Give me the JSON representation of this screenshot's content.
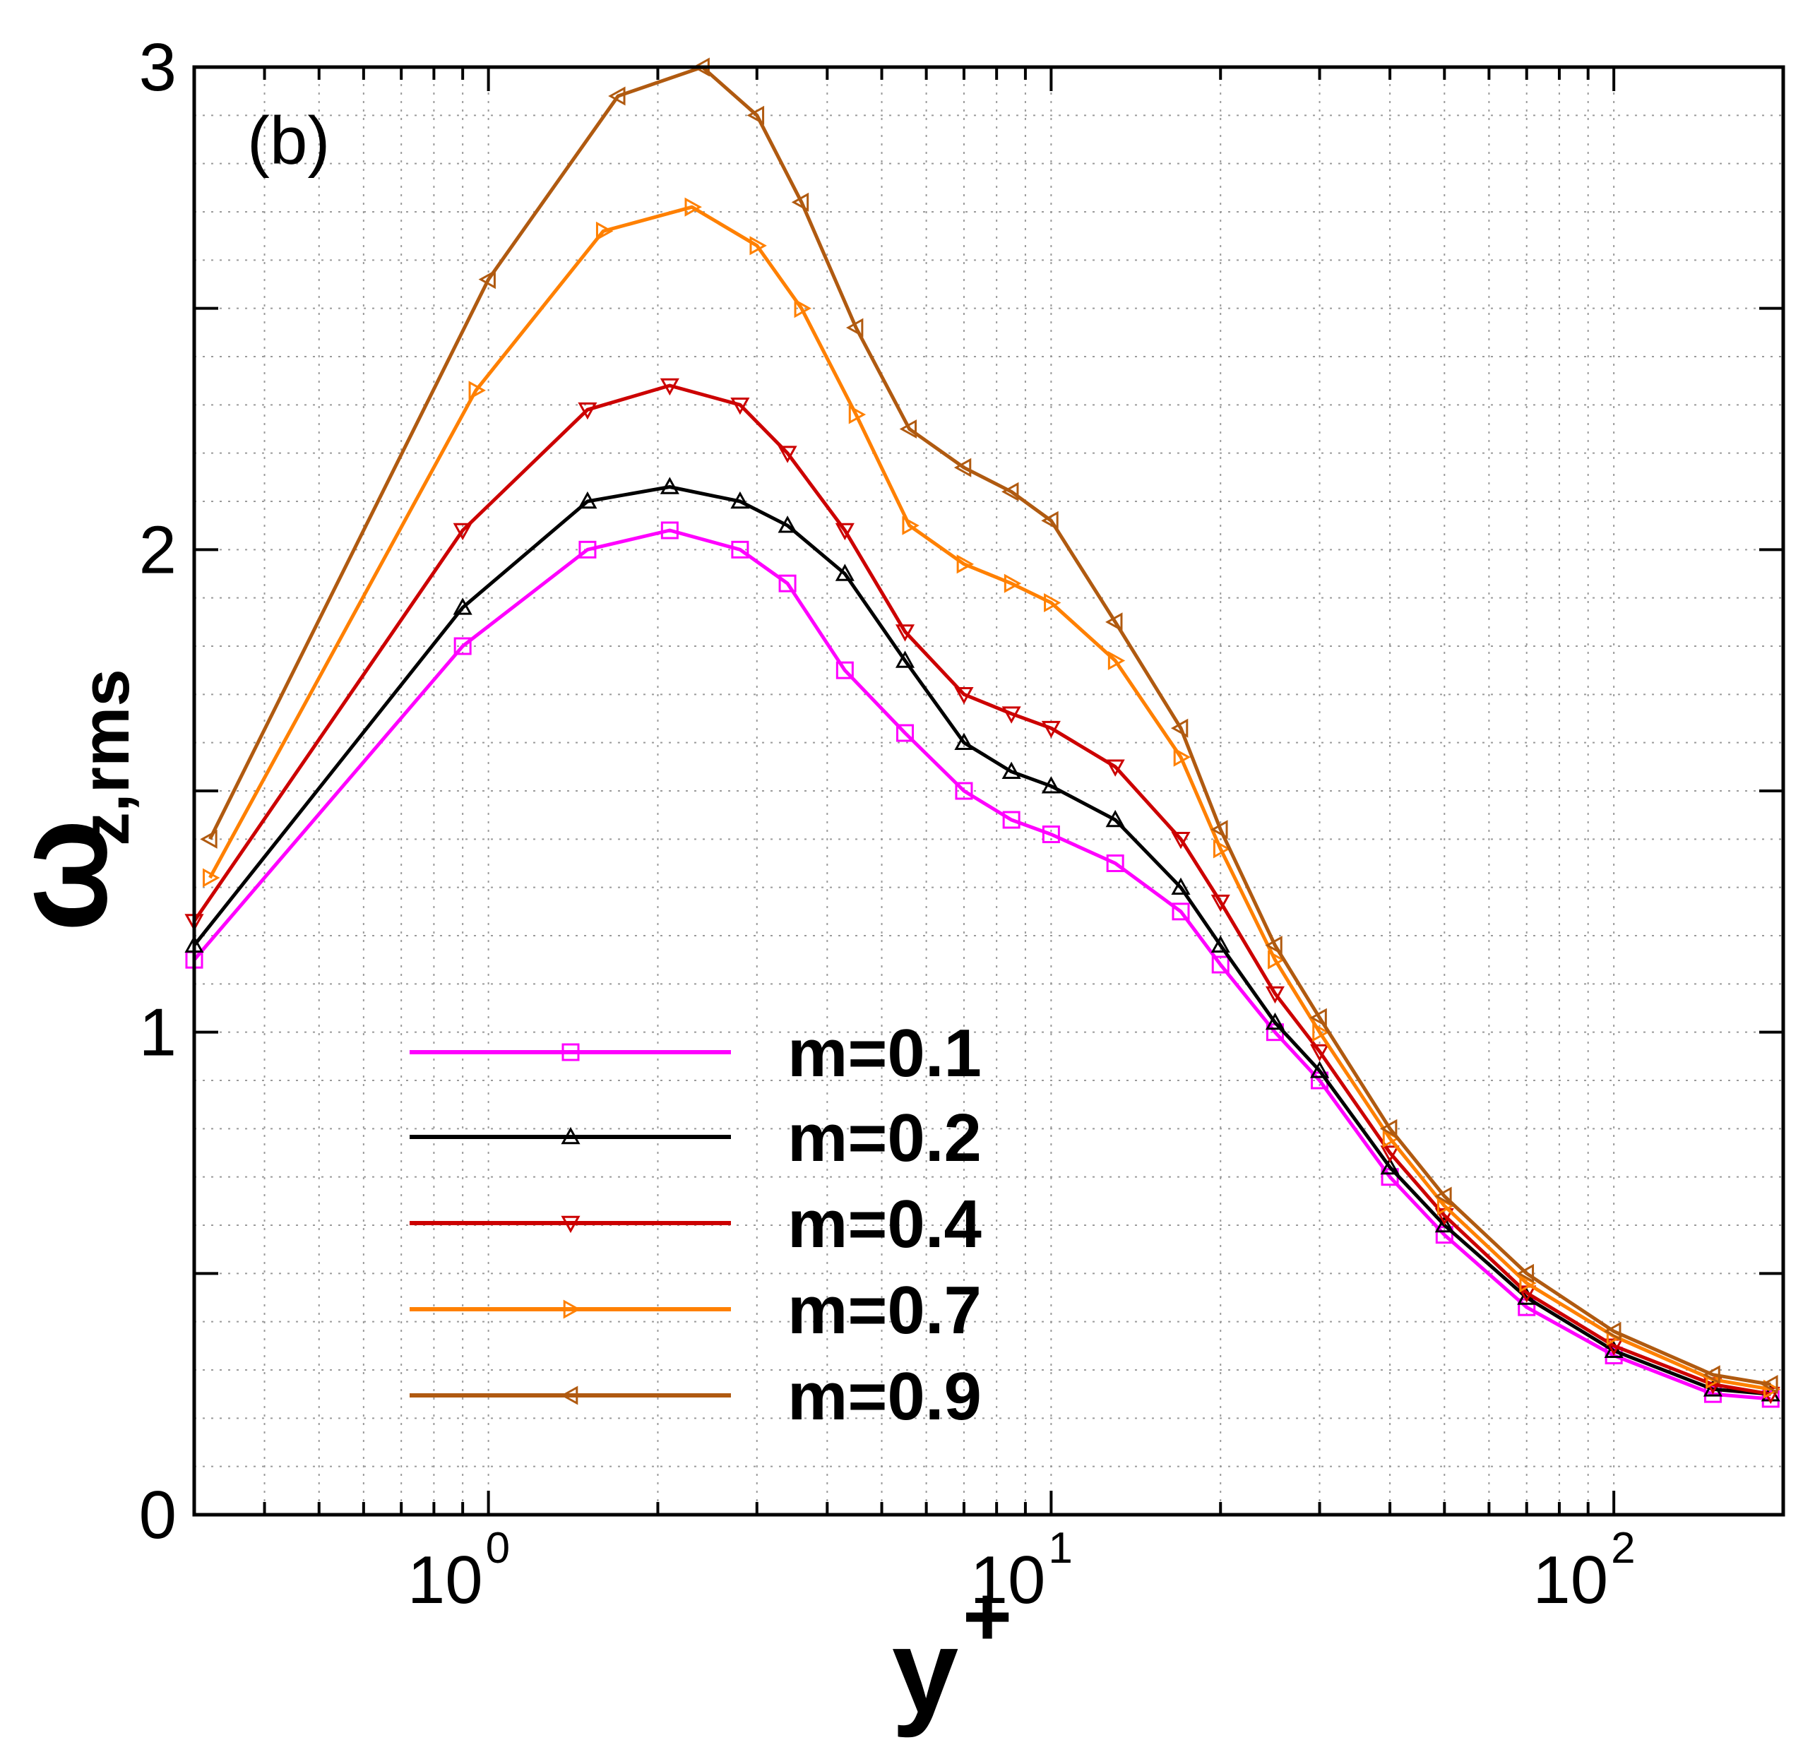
{
  "chart_data": {
    "type": "line",
    "panel_label": "(b)",
    "xlabel": {
      "base": "y",
      "sup": "+"
    },
    "ylabel": {
      "base": "ω",
      "sub": "z,rms"
    },
    "xscale": "log",
    "xlim": [
      0.3,
      200
    ],
    "ylim": [
      0,
      3
    ],
    "grid": true,
    "legend_position": "lower-left",
    "x_tick_labels": [
      {
        "value": 1,
        "base": "10",
        "exp": "0"
      },
      {
        "value": 10,
        "base": "10",
        "exp": "1"
      },
      {
        "value": 100,
        "base": "10",
        "exp": "2"
      }
    ],
    "y_tick_labels": [
      {
        "value": 0,
        "label": "0"
      },
      {
        "value": 1,
        "label": "1"
      },
      {
        "value": 2,
        "label": "2"
      },
      {
        "value": 3,
        "label": "3"
      }
    ],
    "series": [
      {
        "name": "m=0.1",
        "color": "#ff00ff",
        "marker": "square",
        "x": [
          0.3,
          0.9,
          1.5,
          2.1,
          2.8,
          3.4,
          4.3,
          5.5,
          7,
          8.5,
          10,
          13,
          17,
          20,
          25,
          30,
          40,
          50,
          70,
          100,
          150,
          190
        ],
        "y": [
          1.15,
          1.8,
          2.0,
          2.04,
          2.0,
          1.93,
          1.75,
          1.62,
          1.5,
          1.44,
          1.41,
          1.35,
          1.25,
          1.14,
          1.0,
          0.9,
          0.7,
          0.58,
          0.43,
          0.33,
          0.25,
          0.24
        ]
      },
      {
        "name": "m=0.2",
        "color": "#000000",
        "marker": "triangle-up",
        "x": [
          0.3,
          0.9,
          1.5,
          2.1,
          2.8,
          3.4,
          4.3,
          5.5,
          7,
          8.5,
          10,
          13,
          17,
          20,
          25,
          30,
          40,
          50,
          70,
          100,
          150,
          190
        ],
        "y": [
          1.18,
          1.88,
          2.1,
          2.13,
          2.1,
          2.05,
          1.95,
          1.77,
          1.6,
          1.54,
          1.51,
          1.44,
          1.3,
          1.18,
          1.02,
          0.92,
          0.72,
          0.6,
          0.45,
          0.34,
          0.26,
          0.25
        ]
      },
      {
        "name": "m=0.4",
        "color": "#cc0000",
        "marker": "triangle-down",
        "x": [
          0.3,
          0.9,
          1.5,
          2.1,
          2.8,
          3.4,
          4.3,
          5.5,
          7,
          8.5,
          10,
          13,
          17,
          20,
          25,
          30,
          40,
          50,
          70,
          100,
          150,
          190
        ],
        "y": [
          1.23,
          2.04,
          2.29,
          2.34,
          2.3,
          2.2,
          2.04,
          1.83,
          1.7,
          1.66,
          1.63,
          1.55,
          1.4,
          1.27,
          1.08,
          0.96,
          0.75,
          0.62,
          0.46,
          0.35,
          0.27,
          0.25
        ]
      },
      {
        "name": "m=0.7",
        "color": "#ff8000",
        "marker": "triangle-right",
        "x": [
          0.32,
          0.95,
          1.6,
          2.3,
          3,
          3.6,
          4.5,
          5.6,
          7,
          8.5,
          10,
          13,
          17,
          20,
          25,
          30,
          40,
          50,
          70,
          100,
          150,
          190
        ],
        "y": [
          1.32,
          2.33,
          2.66,
          2.71,
          2.63,
          2.5,
          2.28,
          2.05,
          1.97,
          1.93,
          1.89,
          1.77,
          1.57,
          1.38,
          1.15,
          1.0,
          0.78,
          0.64,
          0.48,
          0.37,
          0.28,
          0.26
        ]
      },
      {
        "name": "m=0.9",
        "color": "#b05a10",
        "marker": "triangle-left",
        "x": [
          0.32,
          1.0,
          1.7,
          2.4,
          3,
          3.6,
          4.5,
          5.6,
          7,
          8.5,
          10,
          13,
          17,
          20,
          25,
          30,
          40,
          50,
          70,
          100,
          150,
          190
        ],
        "y": [
          1.4,
          2.56,
          2.94,
          3.0,
          2.9,
          2.72,
          2.46,
          2.25,
          2.17,
          2.12,
          2.06,
          1.85,
          1.63,
          1.42,
          1.18,
          1.03,
          0.8,
          0.66,
          0.5,
          0.38,
          0.29,
          0.27
        ]
      }
    ]
  }
}
